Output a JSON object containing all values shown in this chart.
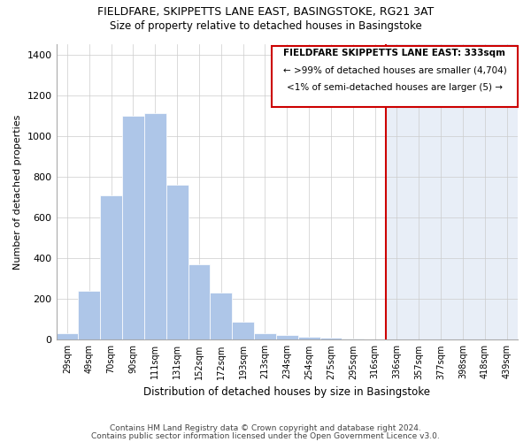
{
  "title1": "FIELDFARE, SKIPPETTS LANE EAST, BASINGSTOKE, RG21 3AT",
  "title2": "Size of property relative to detached houses in Basingstoke",
  "xlabel": "Distribution of detached houses by size in Basingstoke",
  "ylabel": "Number of detached properties",
  "footer1": "Contains HM Land Registry data © Crown copyright and database right 2024.",
  "footer2": "Contains public sector information licensed under the Open Government Licence v3.0.",
  "categories": [
    "29sqm",
    "49sqm",
    "70sqm",
    "90sqm",
    "111sqm",
    "131sqm",
    "152sqm",
    "172sqm",
    "193sqm",
    "213sqm",
    "234sqm",
    "254sqm",
    "275sqm",
    "295sqm",
    "316sqm",
    "336sqm",
    "357sqm",
    "377sqm",
    "398sqm",
    "418sqm",
    "439sqm"
  ],
  "values": [
    30,
    240,
    710,
    1100,
    1110,
    760,
    370,
    230,
    90,
    30,
    25,
    15,
    10,
    5,
    0,
    0,
    0,
    0,
    0,
    0,
    0
  ],
  "highlight_index": 15,
  "bar_color_normal": "#aec6e8",
  "bar_color_highlight": "#d0e4f5",
  "highlight_line_color": "#cc0000",
  "annotation_box_color": "#ffffff",
  "annotation_box_edge": "#cc0000",
  "annotation_title": "FIELDFARE SKIPPETTS LANE EAST: 333sqm",
  "annotation_line1": "← >99% of detached houses are smaller (4,704)",
  "annotation_line2": "<1% of semi-detached houses are larger (5) →",
  "ylim": [
    0,
    1450
  ],
  "yticks": [
    0,
    200,
    400,
    600,
    800,
    1000,
    1200,
    1400
  ],
  "background_color": "#ffffff",
  "plot_bg_color": "#ffffff",
  "highlight_bg_color": "#e8eef7"
}
